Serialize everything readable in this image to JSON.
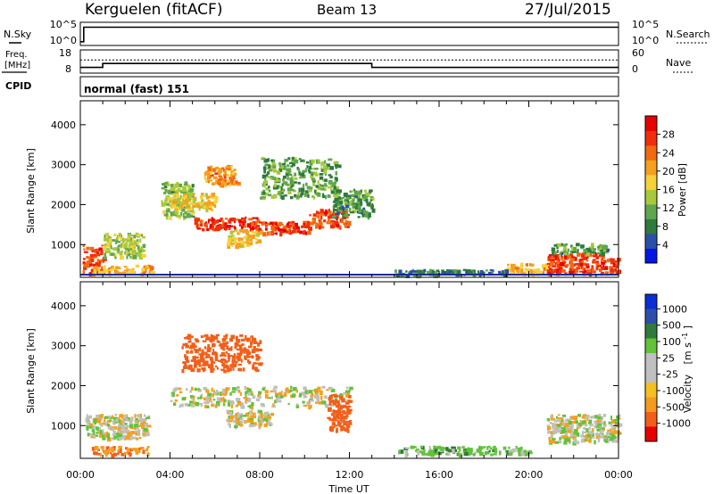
{
  "header": {
    "station": "Kerguelen (fitACF)",
    "beam": "Beam 13",
    "date": "27/Jul/2015"
  },
  "strips": {
    "nsky": {
      "label": "N.Sky",
      "left_ticks": [
        "10^5",
        "10^0"
      ],
      "right_label": "N.Search",
      "right_ticks": [
        "10^5",
        "10^0"
      ]
    },
    "freq": {
      "label_line1": "Freq.",
      "label_line2": "[MHz]",
      "left_ticks": [
        "18",
        "8"
      ],
      "right_label": "Nave",
      "right_ticks": [
        "60",
        "0"
      ]
    },
    "cpid": {
      "label": "CPID",
      "value": "normal (fast) 151"
    }
  },
  "colors": {
    "power_scale": [
      "#0018e0",
      "#2a4fa8",
      "#2f7a3c",
      "#5fa74f",
      "#a8c93c",
      "#f5d23a",
      "#f4a020",
      "#f06a10",
      "#f02e0c",
      "#e80000"
    ],
    "velocity_scale": [
      "#0a2fd4",
      "#2a4fa8",
      "#2f7a3c",
      "#62c23a",
      "#c0c0c0",
      "#c0c0c0",
      "#f4c020",
      "#f49a20",
      "#f0601a",
      "#e80000"
    ],
    "ground_scatter": "#c0c0b8"
  },
  "chart_data": [
    {
      "type": "heatmap",
      "title": "Power",
      "ylabel": "Slant Range [km]",
      "ylim": [
        180,
        4600
      ],
      "xlim_hours": [
        0,
        24
      ],
      "yticks": [
        "1000",
        "2000",
        "3000",
        "4000"
      ],
      "colorbar": {
        "label": "Power [dB]",
        "ticks": [
          "4",
          "8",
          "12",
          "16",
          "20",
          "24",
          "28"
        ],
        "range": [
          0,
          32
        ]
      },
      "regions": [
        {
          "t0": 0.1,
          "t1": 1.0,
          "r0": 300,
          "r1": 1000,
          "value": 26
        },
        {
          "t0": 1.0,
          "t1": 2.8,
          "r0": 700,
          "r1": 1300,
          "value": 14
        },
        {
          "t0": 0.5,
          "t1": 3.2,
          "r0": 300,
          "r1": 500,
          "value": 20
        },
        {
          "t0": 3.6,
          "t1": 5.0,
          "r0": 1700,
          "r1": 2600,
          "value": 13
        },
        {
          "t0": 4.0,
          "t1": 6.0,
          "r0": 1900,
          "r1": 2300,
          "value": 18
        },
        {
          "t0": 5.0,
          "t1": 8.0,
          "r0": 1400,
          "r1": 1700,
          "value": 28
        },
        {
          "t0": 7.8,
          "t1": 10.2,
          "r0": 1300,
          "r1": 1600,
          "value": 27
        },
        {
          "t0": 10.2,
          "t1": 11.9,
          "r0": 1450,
          "r1": 1900,
          "value": 26
        },
        {
          "t0": 6.5,
          "t1": 8.0,
          "r0": 1000,
          "r1": 1400,
          "value": 18
        },
        {
          "t0": 5.5,
          "t1": 7.0,
          "r0": 2500,
          "r1": 3000,
          "value": 22
        },
        {
          "t0": 8.0,
          "t1": 11.5,
          "r0": 2200,
          "r1": 3200,
          "value": 11
        },
        {
          "t0": 11.2,
          "t1": 13.0,
          "r0": 1700,
          "r1": 2400,
          "value": 10
        },
        {
          "t0": 19.0,
          "t1": 21.0,
          "r0": 300,
          "r1": 550,
          "value": 20
        },
        {
          "t0": 20.8,
          "t1": 24.0,
          "r0": 300,
          "r1": 800,
          "value": 27
        },
        {
          "t0": 21.0,
          "t1": 23.5,
          "r0": 800,
          "r1": 1050,
          "value": 10
        },
        {
          "t0": 14.0,
          "t1": 19.0,
          "r0": 250,
          "r1": 400,
          "value": 8
        }
      ]
    },
    {
      "type": "heatmap",
      "title": "Velocity",
      "xlabel": "Time UT",
      "ylabel": "Slant Range [km]",
      "ylim": [
        180,
        4600
      ],
      "xlim_hours": [
        0,
        24
      ],
      "yticks": [
        "1000",
        "2000",
        "3000",
        "4000"
      ],
      "xticks": [
        "00:00",
        "04:00",
        "08:00",
        "12:00",
        "16:00",
        "20:00",
        "00:00"
      ],
      "colorbar": {
        "label": "Velocity [m s^-1]",
        "ticks": [
          "1000",
          "500",
          "100",
          "25",
          "-25",
          "-100",
          "-500",
          "-1000"
        ]
      },
      "regions": [
        {
          "t0": 0.2,
          "t1": 3.0,
          "r0": 700,
          "r1": 1300,
          "value": 0
        },
        {
          "t0": 0.5,
          "t1": 3.0,
          "r0": 300,
          "r1": 500,
          "value": -100
        },
        {
          "t0": 4.0,
          "t1": 12.0,
          "r0": 1500,
          "r1": 2000,
          "value": 0
        },
        {
          "t0": 6.5,
          "t1": 8.5,
          "r0": 1000,
          "r1": 1400,
          "value": 0
        },
        {
          "t0": 4.5,
          "t1": 8.0,
          "r0": 2400,
          "r1": 3300,
          "value": -300
        },
        {
          "t0": 11.0,
          "t1": 12.0,
          "r0": 900,
          "r1": 1800,
          "value": -400
        },
        {
          "t0": 14.0,
          "t1": 20.0,
          "r0": 300,
          "r1": 500,
          "value": 60
        },
        {
          "t0": 20.8,
          "t1": 24.0,
          "r0": 600,
          "r1": 1300,
          "value": 0
        }
      ]
    },
    {
      "type": "line",
      "title": "Freq. [MHz]",
      "x_hours": [
        0,
        1.0,
        1.0,
        13.0,
        13.0,
        24
      ],
      "values": [
        10,
        10,
        12,
        12,
        10,
        10
      ],
      "ylim": [
        8,
        18
      ]
    },
    {
      "type": "line",
      "title": "Nave",
      "x_hours": [
        0,
        24
      ],
      "values": [
        35,
        35
      ],
      "ylim": [
        0,
        60
      ]
    },
    {
      "type": "line",
      "title": "N.Sky",
      "x_hours": [
        0,
        0.15,
        0.15,
        24
      ],
      "values": [
        0.5,
        0.5,
        4.2,
        4.2
      ],
      "ylim": [
        0,
        5
      ]
    }
  ],
  "axes": {
    "time_label": "Time UT",
    "range_label": "Slant Range [km]",
    "power_label": "Power [dB]",
    "velocity_label": "Velocity",
    "velocity_unit": "[m s",
    "velocity_unit_exp": "-1",
    "velocity_unit_close": "]"
  }
}
